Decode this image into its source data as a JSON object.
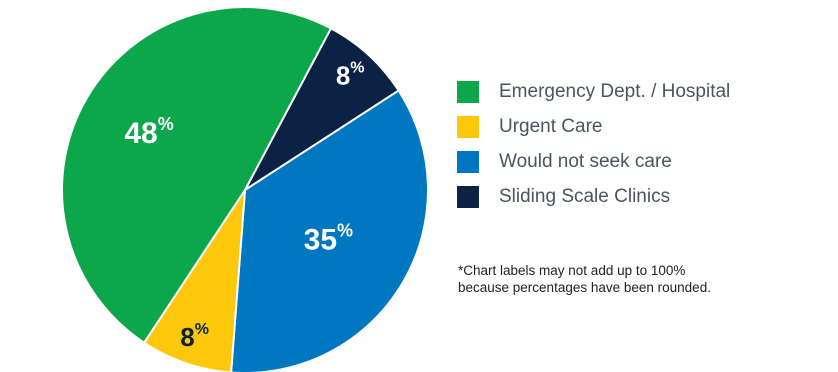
{
  "chart_data": {
    "type": "pie",
    "slices": [
      {
        "label": "Sliding Scale Clinics",
        "value": 8,
        "display": "8",
        "pct": "%",
        "color": "#0b2244"
      },
      {
        "label": "Would not seek care",
        "value": 35,
        "display": "35",
        "pct": "%",
        "color": "#0077c0"
      },
      {
        "label": "Urgent Care",
        "value": 8,
        "display": "8",
        "pct": "%",
        "color": "#fdc70c"
      },
      {
        "label": "Emergency Dept. / Hospital",
        "value": 48,
        "display": "48",
        "pct": "%",
        "color": "#0ba74a"
      }
    ],
    "legend": {
      "placement": "right",
      "entries": [
        {
          "label": "Emergency Dept. / Hospital",
          "color": "#0ba74a"
        },
        {
          "label": "Urgent Care",
          "color": "#fdc70c"
        },
        {
          "label": "Would not seek care",
          "color": "#0077c0"
        },
        {
          "label": "Sliding Scale Clinics",
          "color": "#0b2244"
        }
      ]
    },
    "footnote": {
      "line1": "*Chart labels may not add up to 100%",
      "line2": "because percentages have been rounded."
    }
  }
}
